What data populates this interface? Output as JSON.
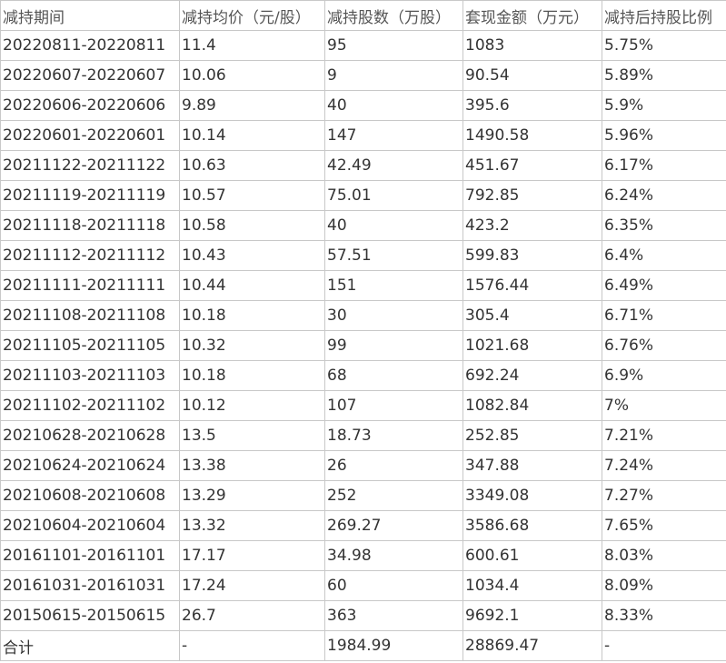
{
  "table": {
    "header": [
      "减持期间",
      "减持均价（元/股）",
      "减持股数（万股）",
      "套现金额（万元）",
      "减持后持股比例"
    ],
    "rows": [
      [
        "20220811-20220811",
        "11.4",
        "95",
        "1083",
        "5.75%"
      ],
      [
        "20220607-20220607",
        "10.06",
        "9",
        "90.54",
        "5.89%"
      ],
      [
        "20220606-20220606",
        "9.89",
        "40",
        "395.6",
        "5.9%"
      ],
      [
        "20220601-20220601",
        "10.14",
        "147",
        "1490.58",
        "5.96%"
      ],
      [
        "20211122-20211122",
        "10.63",
        "42.49",
        "451.67",
        "6.17%"
      ],
      [
        "20211119-20211119",
        "10.57",
        "75.01",
        "792.85",
        "6.24%"
      ],
      [
        "20211118-20211118",
        "10.58",
        "40",
        "423.2",
        "6.35%"
      ],
      [
        "20211112-20211112",
        "10.43",
        "57.51",
        "599.83",
        "6.4%"
      ],
      [
        "20211111-20211111",
        "10.44",
        "151",
        "1576.44",
        "6.49%"
      ],
      [
        "20211108-20211108",
        "10.18",
        "30",
        "305.4",
        "6.71%"
      ],
      [
        "20211105-20211105",
        "10.32",
        "99",
        "1021.68",
        "6.76%"
      ],
      [
        "20211103-20211103",
        "10.18",
        "68",
        "692.24",
        "6.9%"
      ],
      [
        "20211102-20211102",
        "10.12",
        "107",
        "1082.84",
        "7%"
      ],
      [
        "20210628-20210628",
        "13.5",
        "18.73",
        "252.85",
        "7.21%"
      ],
      [
        "20210624-20210624",
        "13.38",
        "26",
        "347.88",
        "7.24%"
      ],
      [
        "20210608-20210608",
        "13.29",
        "252",
        "3349.08",
        "7.27%"
      ],
      [
        "20210604-20210604",
        "13.32",
        "269.27",
        "3586.68",
        "7.65%"
      ],
      [
        "20161101-20161101",
        "17.17",
        "34.98",
        "600.61",
        "8.03%"
      ],
      [
        "20161031-20161031",
        "17.24",
        "60",
        "1034.4",
        "8.09%"
      ],
      [
        "20150615-20150615",
        "26.7",
        "363",
        "9692.1",
        "8.33%"
      ],
      [
        "合计",
        "-",
        "1984.99",
        "28869.47",
        "-"
      ]
    ]
  }
}
